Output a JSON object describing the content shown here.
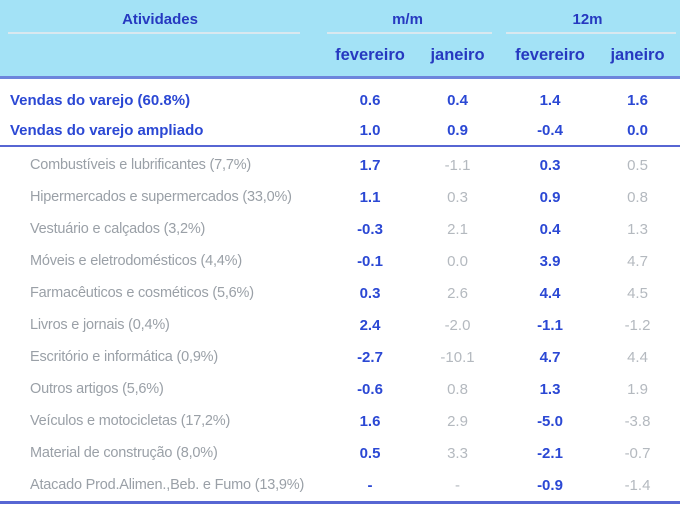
{
  "header": {
    "activities": "Atividades",
    "group_mm": "m/m",
    "group_12m": "12m",
    "subcolumns": [
      "fevereiro",
      "janeiro",
      "fevereiro",
      "janeiro"
    ]
  },
  "colors": {
    "header_bg": "#a3e2f6",
    "header_text": "#2639c0",
    "accent_blue": "#2b48d4",
    "muted_label_gray": "#9aa0a7",
    "muted_value_gray": "#b4b9bf",
    "light_underline": "#d9e8ef",
    "blue_rule": "#5766d3",
    "header_rule": "#6d85dc"
  },
  "rows": [
    {
      "label": "Vendas do varejo (60.8%)",
      "level": 0,
      "values": [
        "0.6",
        "0.4",
        "1.4",
        "1.6"
      ]
    },
    {
      "label": "Vendas do varejo ampliado",
      "level": 0,
      "values": [
        "1.0",
        "0.9",
        "-0.4",
        "0.0"
      ]
    },
    {
      "label": "Combustíveis e lubrificantes (7,7%)",
      "level": 1,
      "values": [
        "1.7",
        "-1.1",
        "0.3",
        "0.5"
      ]
    },
    {
      "label": "Hipermercados e supermercados (33,0%)",
      "level": 1,
      "values": [
        "1.1",
        "0.3",
        "0.9",
        "0.8"
      ]
    },
    {
      "label": "Vestuário e calçados (3,2%)",
      "level": 1,
      "values": [
        "-0.3",
        "2.1",
        "0.4",
        "1.3"
      ]
    },
    {
      "label": "Móveis e eletrodomésticos (4,4%)",
      "level": 1,
      "values": [
        "-0.1",
        "0.0",
        "3.9",
        "4.7"
      ]
    },
    {
      "label": "Farmacêuticos e cosméticos (5,6%)",
      "level": 1,
      "values": [
        "0.3",
        "2.6",
        "4.4",
        "4.5"
      ]
    },
    {
      "label": "Livros e jornais (0,4%)",
      "level": 1,
      "values": [
        "2.4",
        "-2.0",
        "-1.1",
        "-1.2"
      ]
    },
    {
      "label": "Escritório e informática (0,9%)",
      "level": 1,
      "values": [
        "-2.7",
        "-10.1",
        "4.7",
        "4.4"
      ]
    },
    {
      "label": "Outros artigos (5,6%)",
      "level": 1,
      "values": [
        "-0.6",
        "0.8",
        "1.3",
        "1.9"
      ]
    },
    {
      "label": "Veículos e motocicletas (17,2%)",
      "level": 1,
      "values": [
        "1.6",
        "2.9",
        "-5.0",
        "-3.8"
      ]
    },
    {
      "label": "Material de construção (8,0%)",
      "level": 1,
      "values": [
        "0.5",
        "3.3",
        "-2.1",
        "-0.7"
      ]
    },
    {
      "label": "Atacado Prod.Alimen.,Beb. e Fumo (13,9%)",
      "level": 1,
      "values": [
        "-",
        "-",
        "-0.9",
        "-1.4"
      ]
    }
  ],
  "chart_data": {
    "type": "table",
    "title": "",
    "columns": [
      "Atividades",
      "m/m fevereiro",
      "m/m janeiro",
      "12m fevereiro",
      "12m janeiro"
    ],
    "rows": [
      [
        "Vendas do varejo (60.8%)",
        0.6,
        0.4,
        1.4,
        1.6
      ],
      [
        "Vendas do varejo ampliado",
        1.0,
        0.9,
        -0.4,
        0.0
      ],
      [
        "Combustíveis e lubrificantes (7,7%)",
        1.7,
        -1.1,
        0.3,
        0.5
      ],
      [
        "Hipermercados e supermercados (33,0%)",
        1.1,
        0.3,
        0.9,
        0.8
      ],
      [
        "Vestuário e calçados (3,2%)",
        -0.3,
        2.1,
        0.4,
        1.3
      ],
      [
        "Móveis e eletrodomésticos (4,4%)",
        -0.1,
        0.0,
        3.9,
        4.7
      ],
      [
        "Farmacêuticos e cosméticos (5,6%)",
        0.3,
        2.6,
        4.4,
        4.5
      ],
      [
        "Livros e jornais (0,4%)",
        2.4,
        -2.0,
        -1.1,
        -1.2
      ],
      [
        "Escritório e informática (0,9%)",
        -2.7,
        -10.1,
        4.7,
        4.4
      ],
      [
        "Outros artigos (5,6%)",
        -0.6,
        0.8,
        1.3,
        1.9
      ],
      [
        "Veículos e motocicletas (17,2%)",
        1.6,
        2.9,
        -5.0,
        -3.8
      ],
      [
        "Material de construção (8,0%)",
        0.5,
        3.3,
        -2.1,
        -0.7
      ],
      [
        "Atacado Prod.Alimen.,Beb. e Fumo (13,9%)",
        null,
        null,
        -0.9,
        -1.4
      ]
    ]
  }
}
